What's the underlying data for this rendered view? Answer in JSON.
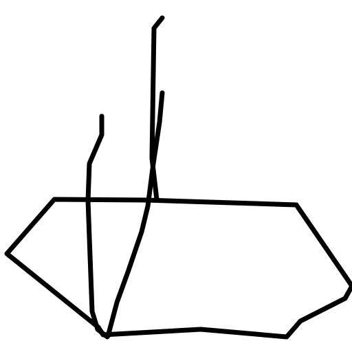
{
  "sketch": {
    "background": "#ffffff",
    "ink_color": "#000000"
  }
}
